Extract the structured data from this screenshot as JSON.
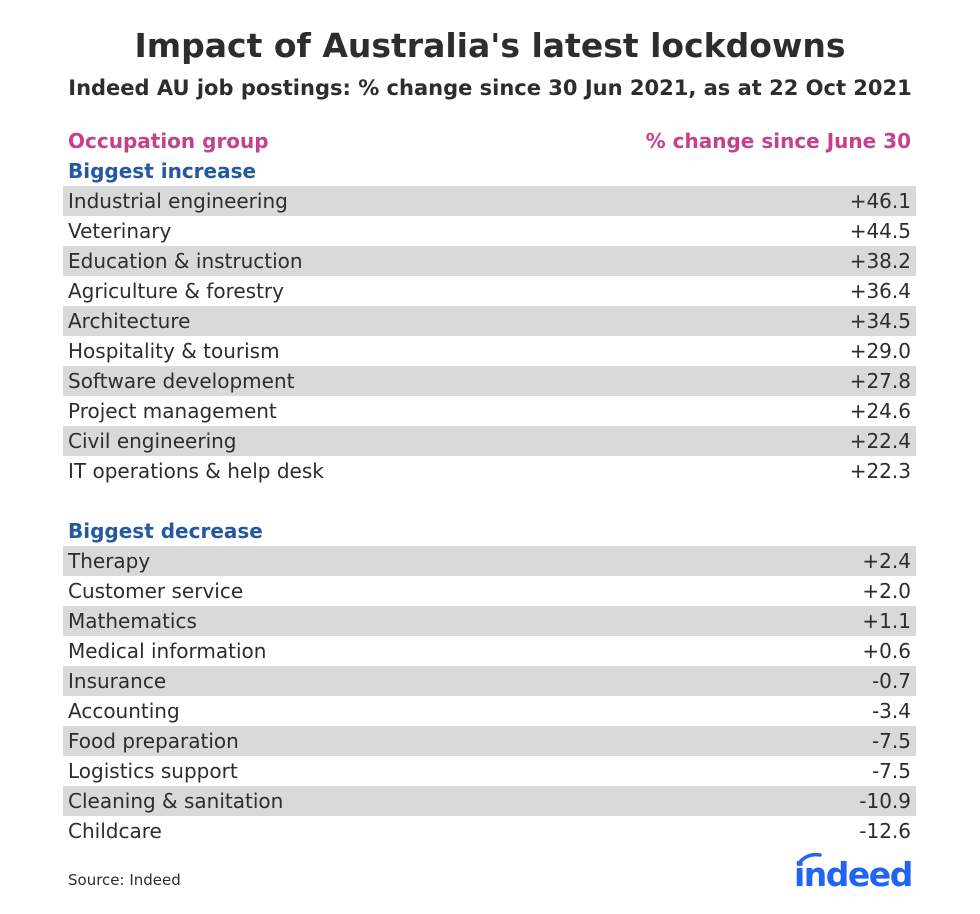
{
  "title": "Impact of Australia's latest lockdowns",
  "subtitle": "Indeed AU job postings: % change since 30 Jun 2021, as at 22 Oct 2021",
  "colors": {
    "header": "#c7408a",
    "section": "#2557a7",
    "shade": "#d9d9d9",
    "text": "#2d2d2d",
    "logo": "#2164f3"
  },
  "chart_data": {
    "type": "table",
    "columns": [
      "Occupation group",
      "% change since June 30"
    ],
    "sections": [
      {
        "title": "Biggest increase",
        "rows": [
          {
            "label": "Industrial engineering",
            "value": "+46.1"
          },
          {
            "label": "Veterinary",
            "value": "+44.5"
          },
          {
            "label": "Education & instruction",
            "value": "+38.2"
          },
          {
            "label": "Agriculture & forestry",
            "value": "+36.4"
          },
          {
            "label": "Architecture",
            "value": "+34.5"
          },
          {
            "label": "Hospitality & tourism",
            "value": "+29.0"
          },
          {
            "label": "Software development",
            "value": "+27.8"
          },
          {
            "label": "Project management",
            "value": "+24.6"
          },
          {
            "label": "Civil engineering",
            "value": "+22.4"
          },
          {
            "label": "IT operations & help desk",
            "value": "+22.3"
          }
        ]
      },
      {
        "title": "Biggest decrease",
        "rows": [
          {
            "label": "Therapy",
            "value": "+2.4"
          },
          {
            "label": "Customer service",
            "value": "+2.0"
          },
          {
            "label": "Mathematics",
            "value": "+1.1"
          },
          {
            "label": "Medical information",
            "value": "+0.6"
          },
          {
            "label": "Insurance",
            "value": "-0.7"
          },
          {
            "label": "Accounting",
            "value": "-3.4"
          },
          {
            "label": "Food preparation",
            "value": "-7.5"
          },
          {
            "label": "Logistics support",
            "value": "-7.5"
          },
          {
            "label": "Cleaning & sanitation",
            "value": "-10.9"
          },
          {
            "label": "Childcare",
            "value": "-12.6"
          }
        ]
      }
    ]
  },
  "source": "Source: Indeed",
  "logo": {
    "text": "indeed",
    "icon": "indeed-logo"
  }
}
